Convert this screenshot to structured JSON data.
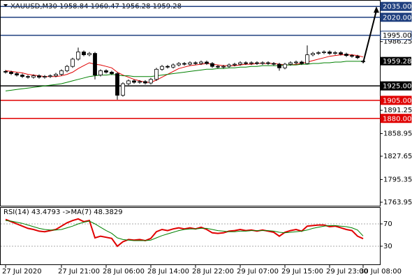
{
  "chart_data": [
    {
      "type": "candlestick",
      "title": "XAUUSD,M30  1958.84 1960.47 1956.28 1959.28",
      "categories": [
        "27 Jul 2020",
        null,
        null,
        null,
        null,
        null,
        null,
        null,
        null,
        null,
        "27 Jul 21:00",
        null,
        null,
        null,
        null,
        null,
        null,
        null,
        "28 Jul 06:00",
        null,
        null,
        null,
        null,
        null,
        null,
        null,
        "28 Jul 14:00",
        null,
        null,
        null,
        null,
        null,
        null,
        null,
        "28 Jul 22:00",
        null,
        null,
        null,
        null,
        null,
        null,
        null,
        "29 Jul 07:00",
        null,
        null,
        null,
        null,
        null,
        null,
        null,
        "29 Jul 15:00",
        null,
        null,
        null,
        null,
        null,
        null,
        null,
        "29 Jul 23:00",
        null,
        null,
        null,
        null,
        null,
        "30 Jul 08:00"
      ],
      "open": [
        1945,
        1944,
        1942,
        1940,
        1938,
        1937,
        1939,
        1937,
        1938,
        1939,
        1941,
        1946,
        1952,
        1962,
        1972,
        1968,
        1970,
        1940,
        1946,
        1944,
        1942,
        1912,
        1928,
        1932,
        1930,
        1931,
        1929,
        1934,
        1948,
        1952,
        1951,
        1954,
        1956,
        1955,
        1957,
        1956,
        1958,
        1956,
        1952,
        1951,
        1952,
        1954,
        1955,
        1957,
        1956,
        1957,
        1956,
        1957,
        1956,
        1955,
        1950,
        1955,
        1957,
        1958,
        1956,
        1968,
        1970,
        1971,
        1972,
        1970,
        1971,
        1969,
        1967,
        1966,
        1958.84
      ],
      "high": [
        1947,
        1946,
        1944,
        1942,
        1940,
        1941,
        1941,
        1940,
        1941,
        1943,
        1948,
        1954,
        1964,
        1978,
        1974,
        1972,
        1972,
        1948,
        1948,
        1946,
        1944,
        1930,
        1934,
        1934,
        1933,
        1933,
        1936,
        1950,
        1954,
        1954,
        1956,
        1958,
        1958,
        1959,
        1959,
        1960,
        1960,
        1958,
        1954,
        1954,
        1956,
        1957,
        1959,
        1959,
        1959,
        1959,
        1959,
        1959,
        1958,
        1957,
        1957,
        1959,
        1960,
        1960,
        1981,
        1972,
        1973,
        1974,
        1974,
        1973,
        1973,
        1971,
        1969,
        1968,
        1960.47
      ],
      "low": [
        1942,
        1940,
        1938,
        1936,
        1935,
        1935,
        1935,
        1935,
        1936,
        1937,
        1939,
        1944,
        1950,
        1960,
        1966,
        1966,
        1934,
        1938,
        1942,
        1940,
        1906,
        1910,
        1926,
        1928,
        1928,
        1927,
        1927,
        1932,
        1946,
        1949,
        1949,
        1952,
        1953,
        1953,
        1954,
        1954,
        1954,
        1950,
        1949,
        1949,
        1950,
        1952,
        1953,
        1954,
        1954,
        1954,
        1954,
        1954,
        1953,
        1946,
        1948,
        1953,
        1955,
        1954,
        1955,
        1966,
        1968,
        1969,
        1968,
        1968,
        1967,
        1965,
        1964,
        1962,
        1956.28
      ],
      "close": [
        1944,
        1942,
        1940,
        1938,
        1937,
        1939,
        1937,
        1938,
        1939,
        1941,
        1946,
        1952,
        1962,
        1972,
        1968,
        1970,
        1940,
        1946,
        1944,
        1942,
        1912,
        1928,
        1932,
        1930,
        1931,
        1929,
        1934,
        1948,
        1952,
        1951,
        1954,
        1956,
        1955,
        1957,
        1956,
        1958,
        1956,
        1952,
        1951,
        1952,
        1954,
        1955,
        1957,
        1956,
        1957,
        1956,
        1957,
        1956,
        1955,
        1950,
        1955,
        1957,
        1958,
        1956,
        1968,
        1970,
        1971,
        1972,
        1970,
        1971,
        1969,
        1967,
        1966,
        1964,
        1959.28
      ],
      "series": [
        {
          "color": "#e00000",
          "values": [
            1946,
            1945,
            1944,
            1943,
            1941,
            1940,
            1939,
            1938,
            1938,
            1938,
            1939,
            1941,
            1944,
            1949,
            1953,
            1957,
            1955,
            1954,
            1952,
            1950,
            1944,
            1940,
            1937,
            1934,
            1932,
            1930,
            1930,
            1933,
            1937,
            1941,
            1945,
            1949,
            1951,
            1953,
            1954,
            1955,
            1956,
            1955,
            1954,
            1953,
            1953,
            1953,
            1954,
            1955,
            1955,
            1956,
            1956,
            1956,
            1956,
            1955,
            1954,
            1954,
            1955,
            1956,
            1958,
            1960,
            1962,
            1964,
            1966,
            1967,
            1968,
            1968,
            1968,
            1967,
            1965
          ]
        },
        {
          "color": "#008000",
          "values": [
            1918,
            1919,
            1920,
            1921,
            1922,
            1923,
            1924,
            1925,
            1926,
            1927,
            1928,
            1930,
            1932,
            1934,
            1936,
            1938,
            1939,
            1940,
            1940,
            1941,
            1940,
            1939,
            1939,
            1938,
            1938,
            1938,
            1938,
            1939,
            1940,
            1941,
            1942,
            1943,
            1944,
            1945,
            1946,
            1947,
            1948,
            1948,
            1949,
            1949,
            1950,
            1950,
            1951,
            1951,
            1952,
            1952,
            1953,
            1953,
            1953,
            1953,
            1954,
            1954,
            1954,
            1955,
            1955,
            1956,
            1956,
            1957,
            1957,
            1958,
            1958,
            1959,
            1959,
            1959,
            1959
          ]
        }
      ],
      "levels": [
        {
          "value": 2035,
          "label": "2035.00",
          "color": "#1f3f7f",
          "box": "#1f3f7f"
        },
        {
          "value": 2020,
          "label": "2020.00",
          "color": "#1f3f7f",
          "box": "#1f3f7f"
        },
        {
          "value": 1995,
          "label": "1995.00",
          "color": "#1f3f7f",
          "box": "#ffffff"
        },
        {
          "value": 1925,
          "label": "1925.00",
          "color": "#000000",
          "box": "#000000"
        },
        {
          "value": 1905,
          "label": "1905.00",
          "color": "#e00000",
          "box": "#e00000"
        },
        {
          "value": 1880,
          "label": "1880.00",
          "color": "#e00000",
          "box": "#e00000"
        }
      ],
      "projection": {
        "from": 1957,
        "to": 2035
      },
      "ylim": [
        1761,
        2041
      ],
      "yticks": [
        1986.25,
        1891.25,
        1858.95,
        1827.65,
        1795.35,
        1763.95
      ]
    },
    {
      "type": "line",
      "title": "RSI(14) 43.4793 ->MA(7) 48.3829",
      "series": [
        {
          "color": "#e00000",
          "values": [
            78,
            74,
            70,
            66,
            62,
            60,
            57,
            56,
            58,
            60,
            66,
            72,
            76,
            79,
            74,
            76,
            45,
            48,
            46,
            44,
            30,
            38,
            42,
            41,
            42,
            40,
            44,
            56,
            60,
            58,
            61,
            63,
            61,
            63,
            61,
            64,
            60,
            54,
            53,
            54,
            57,
            58,
            60,
            58,
            59,
            57,
            59,
            57,
            55,
            48,
            55,
            58,
            60,
            57,
            66,
            67,
            68,
            68,
            65,
            66,
            63,
            60,
            58,
            48,
            43.4793
          ]
        },
        {
          "color": "#008000",
          "values": [
            76,
            75,
            73,
            71,
            68,
            65,
            62,
            60,
            59,
            59,
            60,
            63,
            66,
            70,
            73,
            75,
            70,
            64,
            58,
            53,
            45,
            42,
            41,
            40,
            40,
            40,
            41,
            45,
            49,
            52,
            55,
            58,
            60,
            61,
            61,
            62,
            62,
            60,
            58,
            57,
            56,
            56,
            57,
            57,
            58,
            58,
            58,
            58,
            57,
            55,
            54,
            55,
            56,
            57,
            59,
            62,
            64,
            66,
            67,
            67,
            66,
            65,
            63,
            59,
            48.3829
          ]
        }
      ],
      "ylim": [
        0,
        100
      ],
      "yticks": [
        70,
        30
      ]
    }
  ]
}
